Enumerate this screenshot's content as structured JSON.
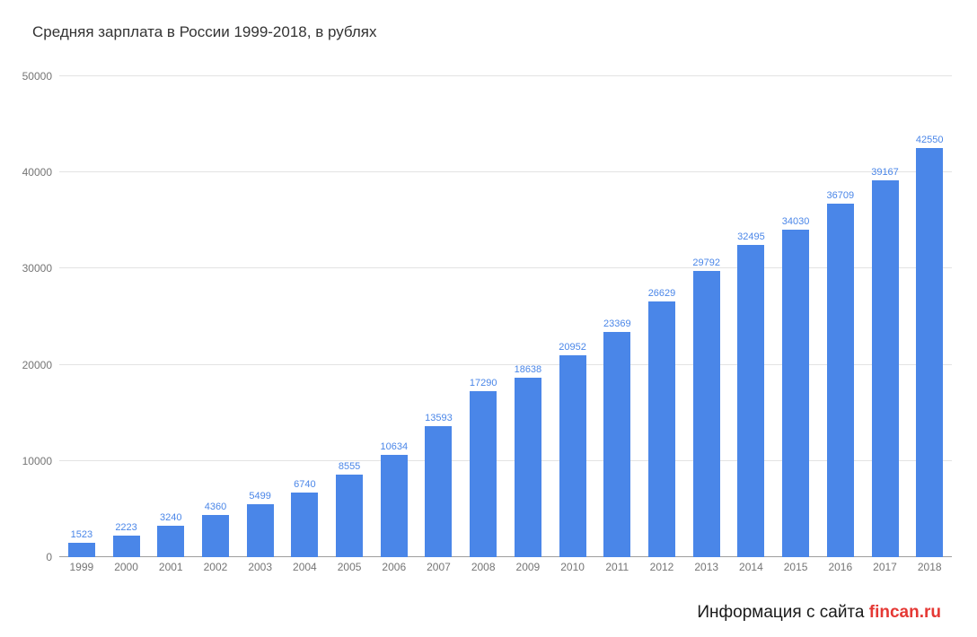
{
  "title": "Средняя зарплата в России 1999-2018, в рублях",
  "footer": {
    "prefix": "Информация с сайта ",
    "brand": "fincan.ru"
  },
  "colors": {
    "bar": "#4a86e8",
    "value_label": "#4a86e8",
    "brand": "#e53935",
    "gridline": "#e3e3e3",
    "axis_text": "#757575",
    "title_text": "#333333"
  },
  "chart_data": {
    "type": "bar",
    "title": "Средняя зарплата в России 1999-2018, в рублях",
    "xlabel": "",
    "ylabel": "",
    "ylim": [
      0,
      50000
    ],
    "yticks": [
      0,
      10000,
      20000,
      30000,
      40000,
      50000
    ],
    "grid": true,
    "legend": "none",
    "categories": [
      "1999",
      "2000",
      "2001",
      "2002",
      "2003",
      "2004",
      "2005",
      "2006",
      "2007",
      "2008",
      "2009",
      "2010",
      "2011",
      "2012",
      "2013",
      "2014",
      "2015",
      "2016",
      "2017",
      "2018"
    ],
    "values": [
      1523,
      2223,
      3240,
      4360,
      5499,
      6740,
      8555,
      10634,
      13593,
      17290,
      18638,
      20952,
      23369,
      26629,
      29792,
      32495,
      34030,
      36709,
      39167,
      42550
    ]
  }
}
